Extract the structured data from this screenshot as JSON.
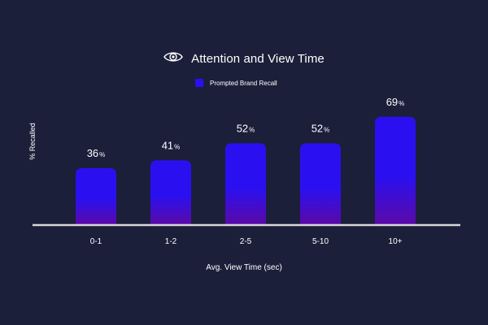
{
  "colors": {
    "background": "#1b1f3a",
    "bar_top": "#2a10f0",
    "bar_bottom": "#5a0aa8",
    "axis": "#d8d8d8"
  },
  "icons": {
    "title_icon": "eye-icon"
  },
  "chart_data": {
    "type": "bar",
    "title": "Attention and View Time",
    "xlabel": "Avg. View Time (sec)",
    "ylabel": "% Recalled",
    "categories": [
      "0-1",
      "1-2",
      "2-5",
      "5-10",
      "10+"
    ],
    "series": [
      {
        "name": "Prompted Brand Recall",
        "values": [
          36,
          41,
          52,
          52,
          69
        ]
      }
    ],
    "value_suffix": "%",
    "ylim": [
      0,
      72
    ],
    "grid": false,
    "legend_position": "top-center"
  }
}
